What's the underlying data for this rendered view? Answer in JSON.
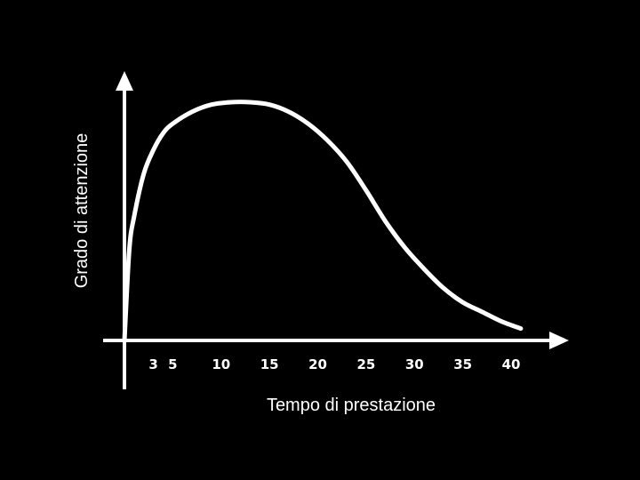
{
  "chart_data": {
    "type": "line",
    "title": "",
    "xlabel": "Tempo di prestazione",
    "ylabel": "Grado di attenzione",
    "x_tick_labels": [
      "3",
      "5",
      "10",
      "15",
      "20",
      "25",
      "30",
      "35",
      "40"
    ],
    "x_ticks": [
      3,
      5,
      10,
      15,
      20,
      25,
      30,
      35,
      40
    ],
    "xlim": [
      0,
      44
    ],
    "ylim": [
      0,
      100
    ],
    "grid": false,
    "legend": "none",
    "series": [
      {
        "x": [
          0,
          0.5,
          1,
          2,
          3,
          4,
          5,
          7,
          9,
          11,
          13,
          15,
          17,
          19,
          21,
          23,
          25,
          27,
          29,
          31,
          33,
          35,
          37,
          39,
          41
        ],
        "values": [
          0,
          38,
          52,
          70,
          80,
          87,
          91,
          96,
          99,
          100,
          100,
          99,
          96,
          91,
          84,
          75,
          63,
          50,
          39,
          30,
          22,
          16,
          12,
          8,
          5
        ]
      }
    ],
    "colors": {
      "background": "#000000",
      "line": "#ffffff",
      "text": "#ffffff"
    }
  }
}
